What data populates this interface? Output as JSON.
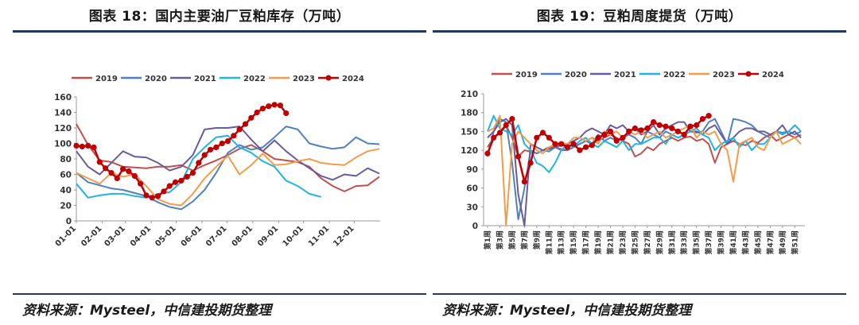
{
  "left": {
    "title": "图表 18：国内主要油厂豆粕库存（万吨）",
    "source": "资料来源：Mysteel，中信建投期货整理"
  },
  "right": {
    "title": "图表 19：豆粕周度提货（万吨）",
    "source": "资料来源：Mysteel，中信建投期货整理"
  },
  "colors": {
    "2019": "#c0504d",
    "2020": "#4f81bd",
    "2021": "#6a5a9e",
    "2022": "#1fb4e6",
    "2023": "#f39c4b",
    "2024": "#c00000"
  },
  "chart_data": [
    {
      "type": "line",
      "title": "图表 18：国内主要油厂豆粕库存（万吨）",
      "xlabel": "",
      "ylabel": "",
      "ylim": [
        0,
        160
      ],
      "yticks": [
        0,
        20,
        40,
        60,
        80,
        100,
        120,
        140,
        160
      ],
      "xlim": [
        0,
        365
      ],
      "xticks": [
        {
          "label": "01-01",
          "x": 0
        },
        {
          "label": "02-01",
          "x": 31
        },
        {
          "label": "03-01",
          "x": 59
        },
        {
          "label": "04-01",
          "x": 90
        },
        {
          "label": "05-01",
          "x": 120
        },
        {
          "label": "06-01",
          "x": 151
        },
        {
          "label": "07-01",
          "x": 181
        },
        {
          "label": "08-01",
          "x": 212
        },
        {
          "label": "09-01",
          "x": 243
        },
        {
          "label": "10-01",
          "x": 273
        },
        {
          "label": "11-01",
          "x": 304
        },
        {
          "label": "12-01",
          "x": 334
        }
      ],
      "legend": "top",
      "grid": false,
      "series": [
        {
          "name": "2019",
          "x": [
            0,
            14,
            28,
            42,
            56,
            70,
            84,
            98,
            112,
            126,
            140,
            154,
            168,
            182,
            196,
            210,
            224,
            238,
            252,
            266,
            280,
            294,
            308,
            322,
            336,
            350,
            364
          ],
          "values": [
            125,
            98,
            78,
            76,
            70,
            69,
            68,
            70,
            70,
            72,
            65,
            72,
            78,
            85,
            93,
            98,
            90,
            80,
            78,
            76,
            70,
            55,
            45,
            38,
            45,
            46,
            57
          ]
        },
        {
          "name": "2020",
          "x": [
            0,
            14,
            28,
            42,
            56,
            70,
            84,
            98,
            112,
            126,
            140,
            154,
            168,
            182,
            196,
            210,
            224,
            238,
            252,
            266,
            280,
            294,
            308,
            322,
            336,
            350,
            364
          ],
          "values": [
            62,
            50,
            46,
            42,
            40,
            36,
            32,
            24,
            18,
            15,
            25,
            40,
            62,
            88,
            98,
            92,
            95,
            108,
            122,
            118,
            100,
            96,
            93,
            95,
            108,
            100,
            99
          ]
        },
        {
          "name": "2021",
          "x": [
            0,
            14,
            28,
            42,
            56,
            70,
            84,
            98,
            112,
            126,
            140,
            154,
            168,
            182,
            196,
            210,
            224,
            238,
            252,
            266,
            280,
            294,
            308,
            322,
            336,
            350,
            364
          ],
          "values": [
            90,
            70,
            60,
            75,
            90,
            83,
            82,
            75,
            65,
            70,
            85,
            118,
            120,
            120,
            122,
            105,
            90,
            104,
            90,
            78,
            68,
            58,
            53,
            60,
            58,
            68,
            61
          ]
        },
        {
          "name": "2022",
          "x": [
            0,
            14,
            28,
            42,
            56,
            70,
            84,
            98,
            112,
            126,
            140,
            154,
            168,
            182,
            196,
            210,
            224,
            238,
            252,
            266,
            280,
            294
          ],
          "values": [
            48,
            30,
            33,
            35,
            35,
            32,
            30,
            35,
            37,
            50,
            80,
            95,
            108,
            110,
            95,
            88,
            77,
            70,
            52,
            45,
            35,
            31
          ]
        },
        {
          "name": "2023",
          "x": [
            0,
            14,
            28,
            42,
            56,
            70,
            84,
            98,
            112,
            126,
            140,
            154,
            168,
            182,
            196,
            210,
            224,
            238,
            252,
            266,
            280,
            294,
            308,
            322,
            336,
            350,
            364
          ],
          "values": [
            62,
            55,
            48,
            62,
            57,
            60,
            45,
            28,
            22,
            20,
            35,
            55,
            70,
            84,
            60,
            72,
            87,
            72,
            73,
            77,
            80,
            75,
            73,
            72,
            82,
            90,
            93
          ]
        },
        {
          "name": "2024",
          "x": [
            0,
            7,
            14,
            21,
            28,
            35,
            42,
            49,
            56,
            63,
            70,
            77,
            84,
            91,
            98,
            105,
            112,
            119,
            126,
            133,
            140,
            147,
            154,
            161,
            168,
            175,
            182,
            189,
            196,
            203,
            210,
            217,
            224,
            231,
            238,
            245,
            252
          ],
          "values": [
            97,
            96,
            97,
            95,
            76,
            68,
            62,
            55,
            67,
            64,
            58,
            48,
            33,
            30,
            32,
            38,
            45,
            50,
            52,
            57,
            62,
            75,
            85,
            92,
            95,
            100,
            103,
            110,
            118,
            125,
            133,
            140,
            145,
            148,
            150,
            149,
            139
          ]
        }
      ]
    },
    {
      "type": "line",
      "title": "图表 19：豆粕周度提货（万吨）",
      "xlabel": "",
      "ylabel": "",
      "ylim": [
        0,
        210
      ],
      "yticks": [
        0,
        30,
        60,
        90,
        120,
        150,
        180,
        210
      ],
      "xlim": [
        1,
        52
      ],
      "xtick_labels": [
        "第1周",
        "第3周",
        "第5周",
        "第7周",
        "第9周",
        "第11周",
        "第13周",
        "第15周",
        "第17周",
        "第19周",
        "第21周",
        "第23周",
        "第25周",
        "第27周",
        "第29周",
        "第31周",
        "第33周",
        "第35周",
        "第37周",
        "第39周",
        "第41周",
        "第43周",
        "第45周",
        "第47周",
        "第49周",
        "第51周"
      ],
      "legend": "top",
      "grid": false,
      "series": [
        {
          "name": "2019",
          "values": [
            125,
            140,
            150,
            160,
            140,
            110,
            120,
            118,
            115,
            120,
            125,
            125,
            120,
            120,
            125,
            130,
            135,
            140,
            135,
            140,
            145,
            140,
            135,
            130,
            110,
            115,
            125,
            120,
            130,
            135,
            140,
            135,
            140,
            142,
            135,
            138,
            130,
            100,
            125,
            130,
            135,
            130,
            128,
            135,
            132,
            140,
            145,
            135,
            140,
            145,
            140,
            145
          ]
        },
        {
          "name": "2020",
          "values": [
            110,
            150,
            170,
            165,
            100,
            10,
            60,
            120,
            115,
            120,
            118,
            125,
            122,
            120,
            125,
            130,
            135,
            130,
            145,
            135,
            140,
            135,
            140,
            145,
            140,
            130,
            150,
            145,
            140,
            150,
            145,
            140,
            145,
            150,
            148,
            150,
            165,
            170,
            150,
            130,
            170,
            168,
            165,
            160,
            150,
            145,
            140,
            150,
            148,
            150,
            145,
            150
          ]
        },
        {
          "name": "2021",
          "values": [
            140,
            150,
            165,
            170,
            160,
            50,
            0,
            130,
            125,
            120,
            122,
            125,
            128,
            130,
            135,
            140,
            150,
            155,
            150,
            145,
            160,
            155,
            160,
            150,
            155,
            145,
            150,
            160,
            145,
            155,
            160,
            165,
            165,
            150,
            150,
            145,
            155,
            160,
            145,
            130,
            140,
            150,
            155,
            155,
            150,
            150,
            145,
            150,
            160,
            145,
            150,
            140
          ]
        },
        {
          "name": "2022",
          "values": [
            150,
            175,
            155,
            150,
            145,
            160,
            130,
            120,
            100,
            95,
            85,
            100,
            120,
            130,
            125,
            135,
            140,
            130,
            125,
            135,
            130,
            125,
            135,
            120,
            130,
            130,
            135,
            140,
            140,
            130,
            145,
            140,
            145,
            150,
            155,
            145,
            140,
            120,
            130,
            135,
            140,
            125,
            135,
            120,
            130,
            130,
            140,
            150,
            145,
            150,
            160,
            150
          ]
        },
        {
          "name": "2023",
          "values": [
            150,
            155,
            175,
            0,
            130,
            150,
            140,
            130,
            120,
            115,
            125,
            130,
            132,
            130,
            140,
            140,
            135,
            140,
            130,
            150,
            145,
            150,
            140,
            150,
            145,
            150,
            140,
            145,
            150,
            140,
            145,
            150,
            155,
            160,
            140,
            150,
            145,
            150,
            130,
            120,
            70,
            130,
            135,
            140,
            125,
            120,
            140,
            150,
            130,
            135,
            140,
            130
          ]
        },
        {
          "name": "2024",
          "values": [
            115,
            140,
            148,
            160,
            170,
            110,
            70,
            100,
            140,
            148,
            140,
            130,
            130,
            125,
            130,
            120,
            125,
            128,
            140,
            145,
            150,
            135,
            140,
            150,
            155,
            152,
            155,
            165,
            160,
            158,
            155,
            150,
            145,
            158,
            160,
            170,
            175
          ]
        }
      ]
    }
  ]
}
